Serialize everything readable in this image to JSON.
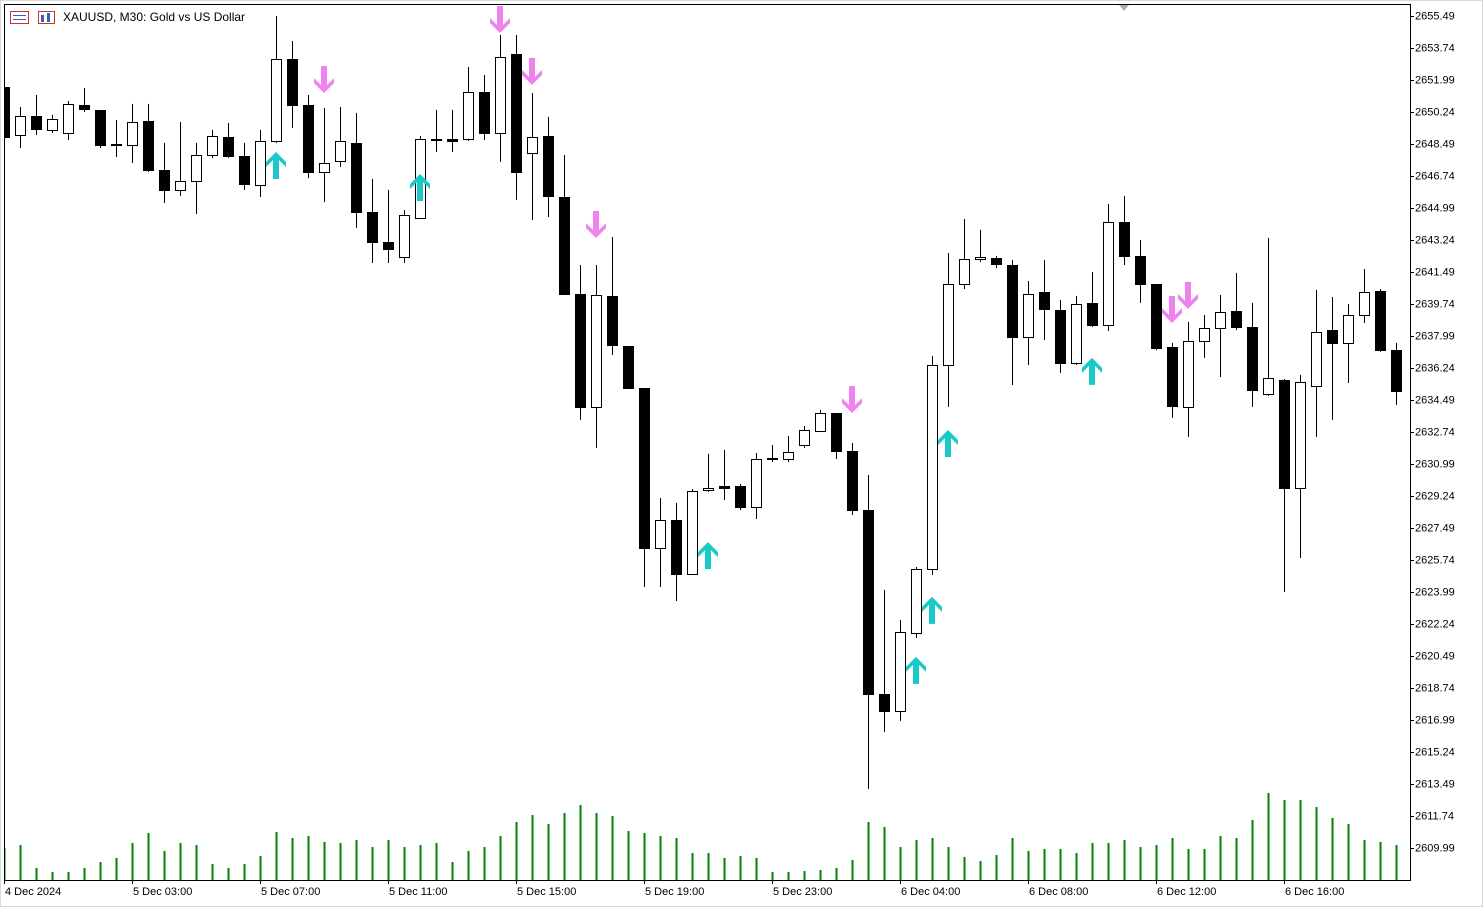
{
  "chart_data": {
    "type": "candlestick",
    "title": "XAUUSD, M30:  Gold vs US Dollar",
    "categories": [
      "4 Dec 2024",
      null,
      null,
      null,
      null,
      null,
      null,
      null,
      "5 Dec 03:00",
      null,
      null,
      null,
      null,
      null,
      null,
      null,
      "5 Dec 07:00",
      null,
      null,
      null,
      null,
      null,
      null,
      null,
      "5 Dec 11:00",
      null,
      null,
      null,
      null,
      null,
      null,
      null,
      "5 Dec 15:00",
      null,
      null,
      null,
      null,
      null,
      null,
      null,
      "5 Dec 19:00",
      null,
      null,
      null,
      null,
      null,
      null,
      null,
      "5 Dec 23:00",
      null,
      null,
      null,
      null,
      null,
      null,
      null,
      "6 Dec 04:00",
      null,
      null,
      null,
      null,
      null,
      null,
      null,
      "6 Dec 08:00",
      null,
      null,
      null,
      null,
      null,
      null,
      null,
      "6 Dec 12:00",
      null,
      null,
      null,
      null,
      null,
      null,
      null,
      "6 Dec 16:00",
      null,
      null,
      null,
      null,
      null,
      null,
      null
    ],
    "open": [
      2651.61,
      2648.98,
      2650.02,
      2649.26,
      2649.09,
      2650.62,
      2650.35,
      2648.49,
      2648.44,
      2649.75,
      2647.07,
      2645.97,
      2646.47,
      2647.89,
      2648.87,
      2647.83,
      2646.25,
      2648.65,
      2653.14,
      2650.62,
      2646.96,
      2647.56,
      2648.55,
      2644.77,
      2643.13,
      2642.31,
      2644.44,
      2648.71,
      2648.76,
      2648.76,
      2651.33,
      2649.09,
      2653.41,
      2648.0,
      2648.93,
      2645.59,
      2640.29,
      2634.11,
      2640.18,
      2637.44,
      2635.15,
      2626.4,
      2627.93,
      2624.97,
      2629.57,
      2629.79,
      2629.79,
      2628.64,
      2631.26,
      2631.26,
      2632.03,
      2632.79,
      2633.78,
      2631.7,
      2628.47,
      2618.41,
      2617.48,
      2621.75,
      2625.25,
      2636.4,
      2640.83,
      2642.2,
      2642.26,
      2641.87,
      2637.94,
      2640.4,
      2639.41,
      2636.51,
      2639.8,
      2638.59,
      2644.22,
      2642.37,
      2640.83,
      2637.39,
      2634.11,
      2637.72,
      2638.43,
      2639.36,
      2638.48,
      2634.82,
      2635.58,
      2629.68,
      2635.26,
      2638.32,
      2637.61,
      2639.14,
      2640.45,
      2637.22
    ],
    "high": [
      2651.72,
      2650.51,
      2651.17,
      2650.08,
      2650.84,
      2651.55,
      2650.35,
      2649.8,
      2650.68,
      2650.68,
      2648.55,
      2649.69,
      2648.55,
      2649.26,
      2649.64,
      2648.55,
      2649.26,
      2655.49,
      2654.12,
      2651.17,
      2650.46,
      2650.51,
      2650.19,
      2646.58,
      2645.97,
      2644.88,
      2648.93,
      2650.35,
      2650.35,
      2652.7,
      2652.26,
      2654.45,
      2654.45,
      2651.28,
      2649.97,
      2647.89,
      2641.87,
      2641.87,
      2643.4,
      2637.44,
      2635.15,
      2629.13,
      2628.86,
      2629.62,
      2631.54,
      2631.76,
      2629.9,
      2631.59,
      2632.03,
      2632.52,
      2633.07,
      2633.94,
      2633.78,
      2632.14,
      2630.39,
      2624.1,
      2622.46,
      2625.36,
      2636.9,
      2642.53,
      2644.39,
      2643.79,
      2642.37,
      2642.15,
      2641.0,
      2642.15,
      2639.96,
      2640.18,
      2641.49,
      2645.21,
      2645.65,
      2643.24,
      2640.83,
      2637.61,
      2638.76,
      2639.14,
      2640.23,
      2641.44,
      2639.8,
      2643.35,
      2635.64,
      2635.86,
      2640.51,
      2640.12,
      2639.74,
      2641.65,
      2640.56,
      2637.61
    ],
    "low": [
      2648.71,
      2648.27,
      2648.98,
      2649.09,
      2648.71,
      2650.24,
      2648.27,
      2647.78,
      2647.45,
      2646.96,
      2645.26,
      2645.65,
      2644.66,
      2647.72,
      2647.72,
      2645.97,
      2645.59,
      2648.55,
      2649.37,
      2646.63,
      2645.32,
      2647.23,
      2643.9,
      2641.98,
      2641.98,
      2641.98,
      2644.44,
      2648.05,
      2648.05,
      2648.65,
      2648.71,
      2647.51,
      2645.43,
      2644.33,
      2644.5,
      2640.29,
      2633.4,
      2631.87,
      2636.95,
      2635.15,
      2624.26,
      2624.26,
      2623.5,
      2624.92,
      2629.46,
      2629.02,
      2628.47,
      2627.98,
      2631.1,
      2631.1,
      2631.87,
      2632.74,
      2631.26,
      2628.2,
      2613.22,
      2616.33,
      2616.94,
      2621.47,
      2624.92,
      2634.11,
      2640.56,
      2642.04,
      2641.71,
      2635.31,
      2636.4,
      2637.77,
      2635.97,
      2636.4,
      2638.48,
      2638.26,
      2641.87,
      2639.8,
      2637.22,
      2633.51,
      2632.47,
      2636.79,
      2635.75,
      2638.32,
      2634.11,
      2634.71,
      2623.99,
      2625.85,
      2632.47,
      2633.4,
      2635.42,
      2638.7,
      2637.12,
      2634.22
    ],
    "close": [
      2648.87,
      2650.02,
      2649.31,
      2649.86,
      2650.68,
      2650.4,
      2648.44,
      2648.44,
      2649.69,
      2647.07,
      2645.97,
      2646.47,
      2647.89,
      2648.93,
      2647.83,
      2646.3,
      2648.65,
      2653.14,
      2650.62,
      2646.96,
      2647.45,
      2648.65,
      2644.77,
      2643.13,
      2642.75,
      2644.61,
      2648.76,
      2648.76,
      2648.65,
      2651.33,
      2649.09,
      2653.25,
      2646.96,
      2648.87,
      2645.65,
      2640.29,
      2634.11,
      2640.23,
      2637.5,
      2635.15,
      2626.4,
      2627.93,
      2624.97,
      2629.51,
      2629.68,
      2629.68,
      2628.64,
      2631.26,
      2631.32,
      2631.65,
      2632.85,
      2633.78,
      2631.7,
      2628.47,
      2618.41,
      2617.48,
      2621.8,
      2625.25,
      2636.4,
      2640.83,
      2642.2,
      2642.31,
      2641.93,
      2637.94,
      2640.29,
      2639.47,
      2636.51,
      2639.74,
      2638.59,
      2644.22,
      2642.37,
      2640.83,
      2637.33,
      2634.16,
      2637.72,
      2638.43,
      2639.3,
      2638.48,
      2635.04,
      2635.69,
      2629.68,
      2635.47,
      2638.21,
      2637.61,
      2639.14,
      2640.4,
      2637.22,
      2634.98
    ],
    "volume": [
      32,
      35,
      12,
      8,
      8,
      12,
      18,
      22,
      37,
      47,
      29,
      37,
      35,
      16,
      12,
      16,
      24,
      48,
      42,
      44,
      38,
      37,
      40,
      33,
      40,
      33,
      35,
      37,
      18,
      29,
      33,
      44,
      58,
      65,
      56,
      67,
      75,
      67,
      64,
      49,
      47,
      44,
      42,
      27,
      27,
      22,
      24,
      22,
      8,
      8,
      9,
      10,
      12,
      20,
      58,
      53,
      33,
      40,
      42,
      33,
      23,
      19,
      25,
      42,
      29,
      31,
      31,
      27,
      37,
      37,
      40,
      33,
      35,
      42,
      31,
      31,
      44,
      42,
      60,
      87,
      80,
      80,
      73,
      62,
      56,
      40,
      38,
      35
    ],
    "up_arrows": [
      null,
      null,
      null,
      null,
      null,
      null,
      null,
      null,
      null,
      null,
      null,
      null,
      null,
      null,
      null,
      null,
      null,
      2648.05,
      null,
      null,
      null,
      null,
      null,
      null,
      null,
      null,
      2646.85,
      null,
      null,
      null,
      null,
      null,
      null,
      null,
      null,
      null,
      null,
      null,
      null,
      null,
      null,
      null,
      null,
      null,
      2626.72,
      null,
      null,
      null,
      null,
      null,
      null,
      null,
      null,
      null,
      null,
      null,
      null,
      2620.44,
      2623.72,
      2632.85,
      null,
      null,
      null,
      null,
      null,
      null,
      null,
      null,
      2636.79,
      null,
      null,
      null,
      null,
      null,
      null,
      null,
      null,
      null,
      null,
      null,
      null,
      null,
      null,
      null,
      null,
      null,
      null,
      null
    ],
    "down_arrows": [
      null,
      null,
      null,
      null,
      null,
      null,
      null,
      null,
      null,
      null,
      null,
      null,
      null,
      null,
      null,
      null,
      null,
      null,
      null,
      null,
      2651.28,
      null,
      null,
      null,
      null,
      null,
      null,
      null,
      null,
      null,
      null,
      2654.56,
      null,
      2651.72,
      null,
      null,
      null,
      2643.35,
      null,
      null,
      null,
      null,
      null,
      null,
      null,
      null,
      null,
      null,
      null,
      null,
      null,
      null,
      null,
      2633.78,
      null,
      null,
      null,
      null,
      null,
      null,
      null,
      null,
      null,
      null,
      null,
      null,
      null,
      null,
      null,
      null,
      null,
      null,
      null,
      2638.7,
      2639.47,
      null,
      null,
      null,
      null,
      null,
      null,
      null,
      null,
      null,
      null,
      null,
      null,
      null
    ],
    "bull_color": "#ffffff",
    "bear_color": "#000000",
    "volume_color": "#008000",
    "up_arrow_color": "#19c8c8",
    "down_arrow_color": "#ee82ee",
    "ylim": [
      2608.24,
      2656.09
    ],
    "yticks": [
      2655.49,
      2653.74,
      2651.99,
      2650.24,
      2648.49,
      2646.74,
      2644.99,
      2643.24,
      2641.49,
      2639.74,
      2637.99,
      2636.24,
      2634.49,
      2632.74,
      2630.99,
      2629.24,
      2627.49,
      2625.74,
      2623.99,
      2622.24,
      2620.49,
      2618.74,
      2616.99,
      2615.24,
      2613.49,
      2611.74,
      2609.99
    ]
  }
}
